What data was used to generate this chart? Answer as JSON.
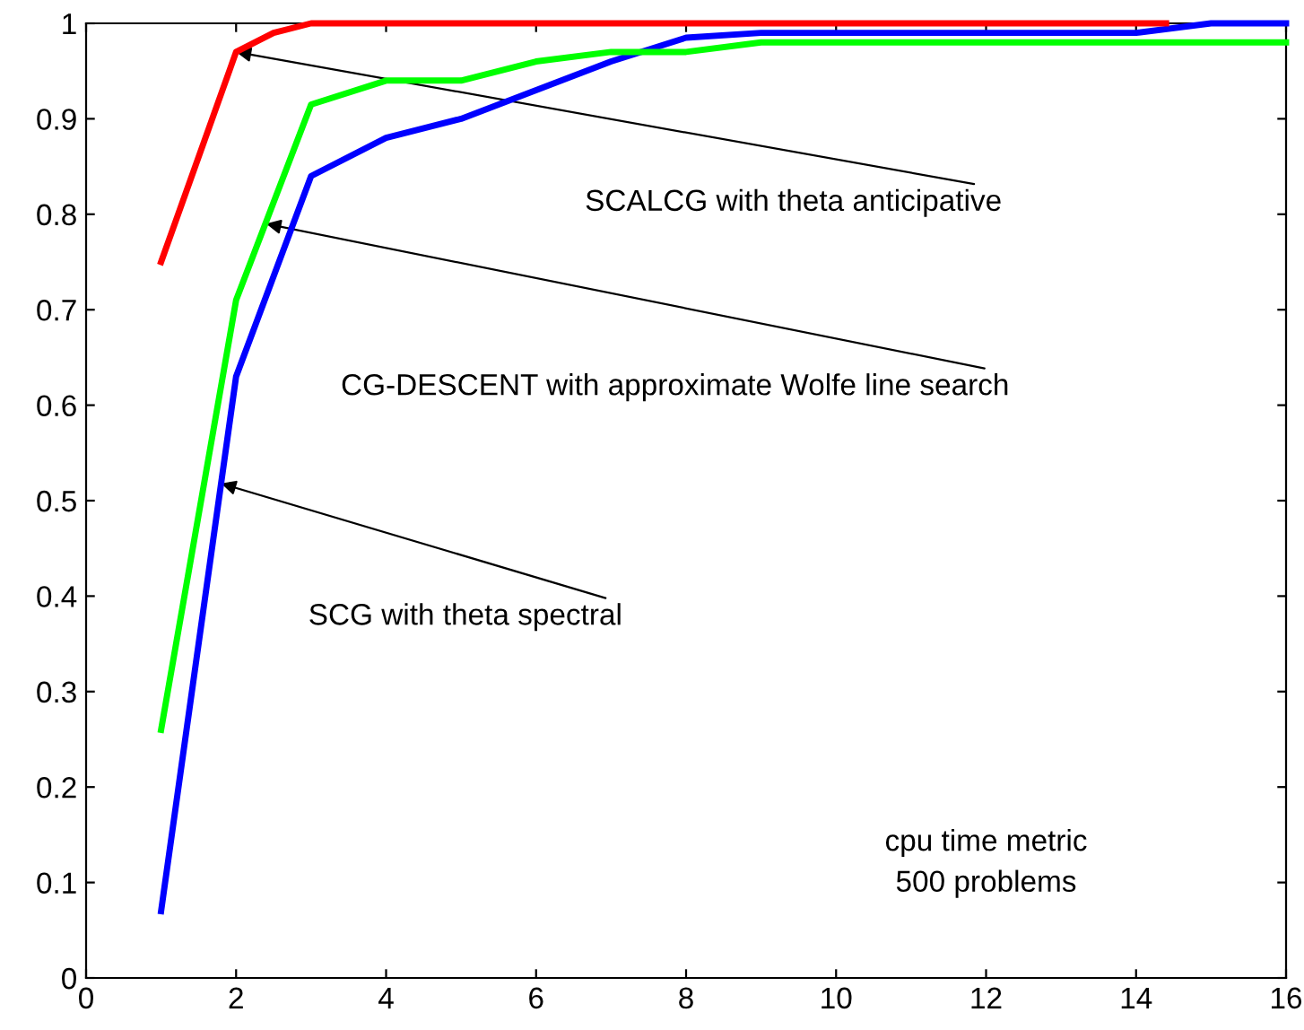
{
  "chart_data": {
    "type": "line",
    "xlim": [
      0,
      16
    ],
    "ylim": [
      0,
      1
    ],
    "xticks": [
      0,
      2,
      4,
      6,
      8,
      10,
      12,
      14,
      16
    ],
    "yticks": [
      0,
      0.1,
      0.2,
      0.3,
      0.4,
      0.5,
      0.6,
      0.7,
      0.8,
      0.9,
      1
    ],
    "grid": false,
    "legend": false,
    "marker": "none",
    "line_style": "solid",
    "series": [
      {
        "color": "#ff0000",
        "x": [
          1,
          2,
          2.5,
          3,
          14.4
        ],
        "values": [
          0.75,
          0.97,
          0.99,
          1.0,
          1.0
        ]
      },
      {
        "color": "#00ff00",
        "x": [
          1,
          2,
          3,
          4,
          5,
          6,
          7,
          8,
          9,
          16
        ],
        "values": [
          0.26,
          0.71,
          0.915,
          0.94,
          0.94,
          0.96,
          0.97,
          0.97,
          0.98,
          0.98
        ]
      },
      {
        "color": "#0000ff",
        "x": [
          1,
          2,
          3,
          4,
          5,
          6,
          7,
          8,
          9,
          14,
          15,
          16
        ],
        "values": [
          0.07,
          0.63,
          0.84,
          0.88,
          0.9,
          0.93,
          0.96,
          0.985,
          0.99,
          0.99,
          1.0,
          1.0
        ]
      }
    ],
    "annotations": [
      {
        "text": "SCALCG with theta anticipative",
        "x": 2,
        "y": 0.97
      },
      {
        "text": "CG-DESCENT with approximate Wolfe line search",
        "x": 2.4,
        "y": 0.79
      },
      {
        "text": "SCG with theta spectral",
        "x": 1.8,
        "y": 0.518
      },
      "cpu time metric\n500 problems"
    ]
  }
}
